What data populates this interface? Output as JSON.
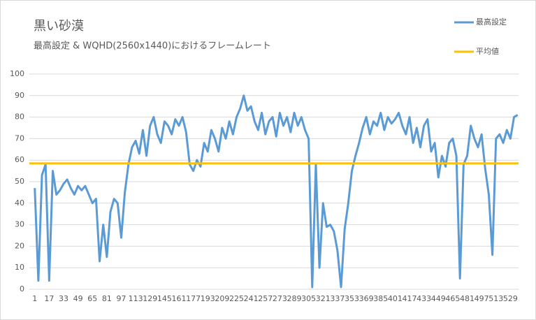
{
  "chart_data": {
    "type": "line",
    "title": "黒い砂漠",
    "subtitle": "最高設定 & WQHD(2560x1440)におけるフレームレート",
    "x": [
      1,
      5,
      9,
      13,
      17,
      21,
      25,
      29,
      33,
      37,
      41,
      45,
      49,
      53,
      57,
      61,
      65,
      69,
      73,
      77,
      81,
      85,
      89,
      93,
      97,
      101,
      105,
      109,
      113,
      117,
      121,
      125,
      129,
      133,
      137,
      141,
      145,
      149,
      153,
      157,
      161,
      165,
      169,
      173,
      177,
      181,
      185,
      189,
      193,
      197,
      201,
      205,
      209,
      213,
      217,
      221,
      225,
      229,
      233,
      237,
      241,
      245,
      249,
      253,
      257,
      261,
      265,
      269,
      273,
      277,
      281,
      285,
      289,
      293,
      297,
      301,
      305,
      309,
      313,
      317,
      321,
      325,
      329,
      333,
      337,
      341,
      345,
      349,
      353,
      357,
      361,
      365,
      369,
      373,
      377,
      381,
      385,
      389,
      393,
      397,
      401,
      405,
      409,
      413,
      417,
      421,
      425,
      429,
      433,
      437,
      441,
      445,
      449,
      453,
      457,
      461,
      465,
      469,
      473,
      477,
      481,
      485,
      489,
      493,
      497,
      501,
      505,
      509,
      513,
      517,
      521,
      525,
      529,
      533,
      537
    ],
    "series": [
      {
        "name": "最高設定",
        "color": "#5b9bd5",
        "values": [
          47,
          4,
          53,
          58,
          4,
          55,
          44,
          46,
          49,
          51,
          47,
          44,
          48,
          46,
          48,
          44,
          40,
          42,
          13,
          30,
          15,
          36,
          42,
          40,
          24,
          45,
          58,
          66,
          69,
          63,
          74,
          62,
          76,
          80,
          72,
          68,
          78,
          76,
          72,
          79,
          76,
          80,
          73,
          58,
          55,
          60,
          57,
          68,
          64,
          74,
          70,
          64,
          75,
          70,
          78,
          72,
          80,
          84,
          90,
          83,
          85,
          78,
          74,
          82,
          72,
          78,
          80,
          71,
          82,
          76,
          80,
          73,
          82,
          76,
          80,
          74,
          70,
          1,
          58,
          10,
          40,
          29,
          30,
          27,
          18,
          1,
          28,
          40,
          55,
          62,
          68,
          75,
          80,
          72,
          78,
          76,
          82,
          74,
          80,
          77,
          79,
          82,
          76,
          72,
          80,
          68,
          75,
          66,
          76,
          79,
          64,
          68,
          52,
          62,
          57,
          68,
          70,
          62,
          5,
          58,
          62,
          76,
          70,
          66,
          72,
          56,
          44,
          16,
          70,
          72,
          68,
          74,
          70,
          80,
          81
        ]
      }
    ],
    "average": {
      "name": "平均値",
      "color": "#ffc000",
      "value": 58.5
    },
    "xlim": [
      -5,
      538
    ],
    "xticks": [
      1,
      17,
      33,
      49,
      65,
      81,
      97,
      113,
      129,
      145,
      161,
      177,
      193,
      209,
      225,
      241,
      257,
      273,
      289,
      305,
      321,
      337,
      353,
      369,
      385,
      401,
      417,
      433,
      449,
      465,
      481,
      497,
      513,
      529
    ],
    "ylim": [
      0,
      100
    ],
    "yticks": [
      0,
      10,
      20,
      30,
      40,
      50,
      60,
      70,
      80,
      90,
      100
    ],
    "grid": true
  }
}
